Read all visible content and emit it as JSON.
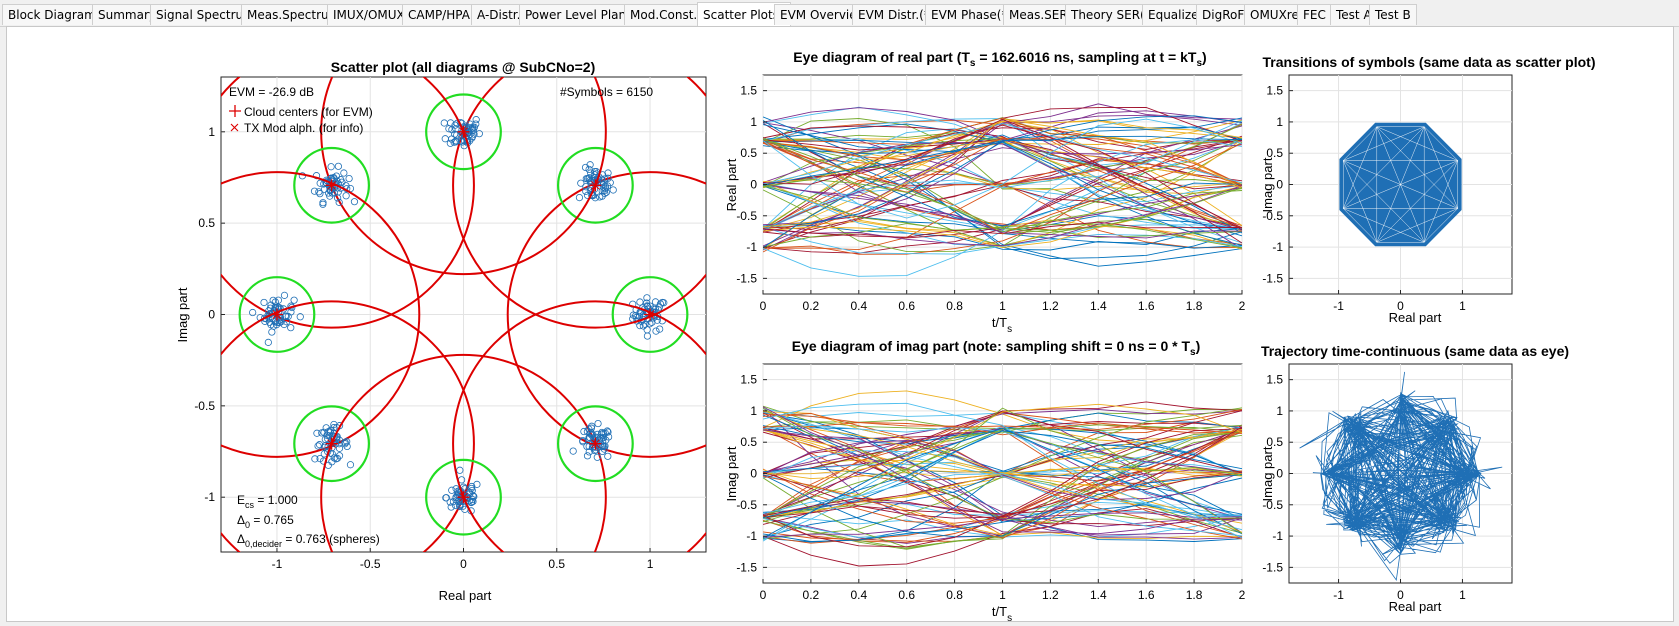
{
  "tabs": [
    {
      "label": "Block Diagram*"
    },
    {
      "label": "Summary"
    },
    {
      "label": "Signal Spectrum"
    },
    {
      "label": "Meas.Spectrum"
    },
    {
      "label": "IMUX/OMUX"
    },
    {
      "label": "CAMP/HPA"
    },
    {
      "label": "A-Distr."
    },
    {
      "label": "Power Level Plan(*)"
    },
    {
      "label": "Mod.Const.*"
    },
    {
      "label": "Scatter Plots*",
      "active": true
    },
    {
      "label": "EVM Overview"
    },
    {
      "label": "EVM Distr.(*)"
    },
    {
      "label": "EVM Phase(*)"
    },
    {
      "label": "Meas.SER*"
    },
    {
      "label": "Theory SER(*)"
    },
    {
      "label": "Equalizer"
    },
    {
      "label": "DigRoF"
    },
    {
      "label": "OMUXrefl"
    },
    {
      "label": "FEC"
    },
    {
      "label": "Test A"
    },
    {
      "label": "Test B"
    }
  ],
  "colors": {
    "cloud": "#1f6fb5",
    "decider": "#dd0000",
    "inner": "#22dd22",
    "marker": "#dd0000"
  },
  "scatter": {
    "title": "Scatter plot (all diagrams @ SubCNo=2)",
    "evm": "EVM = -26.9 dB",
    "symbols": "#Symbols = 6150",
    "legend_centers": "Cloud centers (for EVM)",
    "legend_tx": "TX Mod alph. (for info)",
    "xlabel": "Real part",
    "ylabel": "Imag part",
    "ecs_label": "E",
    "ecs_sub": "cs",
    "ecs_value": " = 1.000",
    "delta0_label": "Δ",
    "delta0_sub": "0",
    "delta0_value": " = 0.765",
    "delta0dec_label": "Δ",
    "delta0dec_sub": "0,decider",
    "delta0dec_value": " = 0.763 (spheres)"
  },
  "eye_real": {
    "title_pre": "Eye diagram of real part   (T",
    "title_sub": "s",
    "title_post": " = 162.6016 ns, sampling at t = kT",
    "title_sub2": "s",
    "title_end": ")",
    "xlabel": "t/T",
    "xlabel_sub": "s",
    "ylabel": "Real part"
  },
  "eye_imag": {
    "title_pre": "Eye diagram of imag part   (note: sampling shift = 0 ns = 0 * T",
    "title_sub": "s",
    "title_end": ")",
    "xlabel": "t/T",
    "xlabel_sub": "s",
    "ylabel": "Imag part"
  },
  "transitions": {
    "title": "Transitions of symbols  (same data as scatter plot)",
    "xlabel": "Real part",
    "ylabel": "Imag part"
  },
  "trajectory": {
    "title": "Trajectory time-continuous  (same data as eye)",
    "xlabel": "Real part",
    "ylabel": "Imag part"
  },
  "chart_data": [
    {
      "type": "scatter",
      "name": "scatter",
      "xlim": [
        -1.3,
        1.3
      ],
      "ylim": [
        -1.3,
        1.3
      ],
      "xticks": [
        "-1",
        "-0.5",
        "0",
        "0.5",
        "1"
      ],
      "yticks": [
        "1",
        "0.5",
        "0",
        "-0.5",
        "-1"
      ],
      "constellation": "8-PSK, unit radius, 8 clouds with decider spheres"
    },
    {
      "type": "line",
      "name": "eye-real",
      "xlim": [
        0,
        2
      ],
      "ylim": [
        -1.75,
        1.75
      ],
      "xticks": [
        "0",
        "0.2",
        "0.4",
        "0.6",
        "0.8",
        "1",
        "1.2",
        "1.4",
        "1.6",
        "1.8",
        "2"
      ],
      "yticks": [
        "1.5",
        "1",
        "0.5",
        "0",
        "-0.5",
        "-1",
        "-1.5"
      ]
    },
    {
      "type": "line",
      "name": "eye-imag",
      "xlim": [
        0,
        2
      ],
      "ylim": [
        -1.75,
        1.75
      ],
      "xticks": [
        "0",
        "0.2",
        "0.4",
        "0.6",
        "0.8",
        "1",
        "1.2",
        "1.4",
        "1.6",
        "1.8",
        "2"
      ],
      "yticks": [
        "1.5",
        "1",
        "0.5",
        "0",
        "-0.5",
        "-1",
        "-1.5"
      ]
    },
    {
      "type": "line",
      "name": "transitions",
      "xlim": [
        -1.8,
        1.8
      ],
      "ylim": [
        -1.75,
        1.75
      ],
      "xticks": [
        "-1",
        "0",
        "1"
      ],
      "yticks": [
        "1.5",
        "1",
        "0.5",
        "0",
        "-0.5",
        "-1",
        "-1.5"
      ]
    },
    {
      "type": "line",
      "name": "trajectory",
      "xlim": [
        -1.8,
        1.8
      ],
      "ylim": [
        -1.75,
        1.75
      ],
      "xticks": [
        "-1",
        "0",
        "1"
      ],
      "yticks": [
        "1.5",
        "1",
        "0.5",
        "0",
        "-0.5",
        "-1",
        "-1.5"
      ]
    }
  ]
}
